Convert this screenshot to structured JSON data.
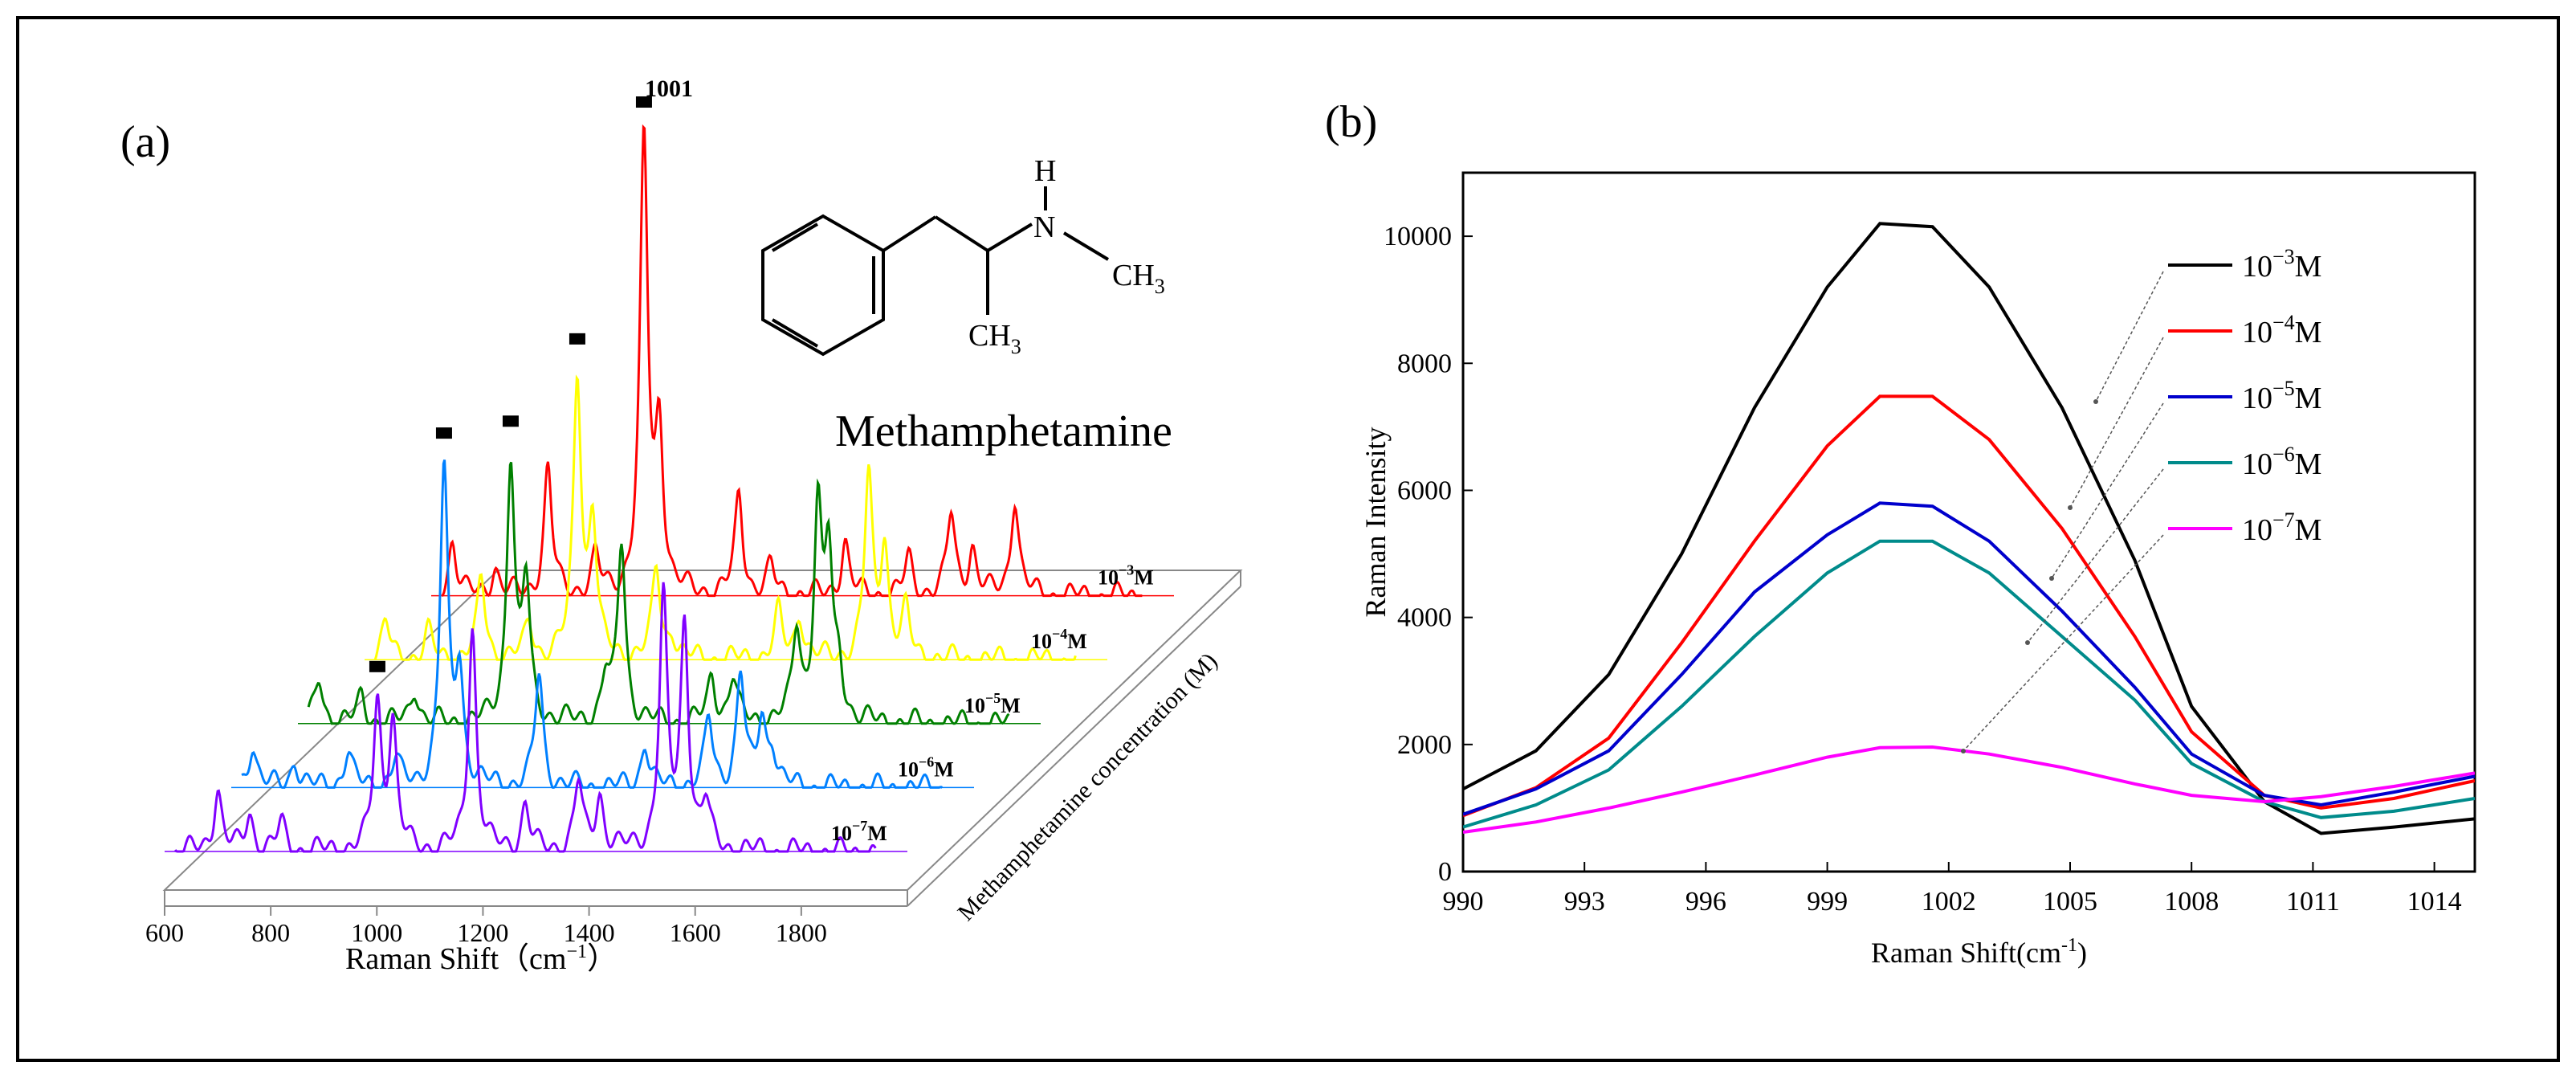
{
  "figure": {
    "panel_a_label": "(a)",
    "panel_b_label": "(b)",
    "molecule": {
      "name": "Methamphetamine",
      "atom_h": "H",
      "atom_n": "N",
      "group_ch3_right": "CH3",
      "group_ch3_bottom": "CH3",
      "ch_text": "CH",
      "subscript_3": "3"
    }
  },
  "chart_data": [
    {
      "type": "line",
      "panel": "(a)",
      "style": "waterfall-3d",
      "title": "",
      "xlabel": "Raman Shift（cm",
      "xlabel_sup": "−1",
      "xlabel_close": "）",
      "zlabel": "Methamphetamine concentration (M)",
      "xlim": [
        600,
        2000
      ],
      "xticks": [
        "600",
        "800",
        "1000",
        "1200",
        "1400",
        "1600",
        "1800"
      ],
      "peak_annotation": "1001",
      "series": [
        {
          "name": "10−3M",
          "base": "10",
          "exp": "−3",
          "unit": "M",
          "color": "#ff0000",
          "peaks": [
            [
              640,
              0.12
            ],
            [
              720,
              0.06
            ],
            [
              820,
              0.28
            ],
            [
              910,
              0.08
            ],
            [
              1001,
              1.0
            ],
            [
              1030,
              0.35
            ],
            [
              1180,
              0.22
            ],
            [
              1240,
              0.06
            ],
            [
              1380,
              0.12
            ],
            [
              1500,
              0.08
            ],
            [
              1580,
              0.18
            ],
            [
              1620,
              0.1
            ],
            [
              1700,
              0.22
            ]
          ]
        },
        {
          "name": "10−4M",
          "base": "10",
          "exp": "−4",
          "unit": "M",
          "color": "#ffff00",
          "peaks": [
            [
              640,
              0.08
            ],
            [
              720,
              0.06
            ],
            [
              820,
              0.18
            ],
            [
              910,
              0.08
            ],
            [
              1001,
              0.62
            ],
            [
              1030,
              0.3
            ],
            [
              1150,
              0.2
            ],
            [
              1180,
              0.05
            ],
            [
              1380,
              0.1
            ],
            [
              1420,
              0.1
            ],
            [
              1550,
              0.4
            ],
            [
              1580,
              0.25
            ],
            [
              1620,
              0.1
            ]
          ]
        },
        {
          "name": "10−5M",
          "base": "10",
          "exp": "−5",
          "unit": "M",
          "color": "#008000",
          "peaks": [
            [
              640,
              0.1
            ],
            [
              720,
              0.06
            ],
            [
              820,
              0.08
            ],
            [
              1001,
              0.58
            ],
            [
              1030,
              0.3
            ],
            [
              1180,
              0.1
            ],
            [
              1210,
              0.4
            ],
            [
              1380,
              0.1
            ],
            [
              1420,
              0.1
            ],
            [
              1540,
              0.2
            ],
            [
              1580,
              0.45
            ],
            [
              1600,
              0.35
            ],
            [
              1620,
              0.1
            ]
          ]
        },
        {
          "name": "10−6M",
          "base": "10",
          "exp": "−6",
          "unit": "M",
          "color": "#0080ff",
          "peaks": [
            [
              640,
              0.1
            ],
            [
              720,
              0.06
            ],
            [
              820,
              0.08
            ],
            [
              910,
              0.06
            ],
            [
              1001,
              0.7
            ],
            [
              1030,
              0.25
            ],
            [
              1180,
              0.25
            ],
            [
              1380,
              0.1
            ],
            [
              1500,
              0.15
            ],
            [
              1560,
              0.25
            ],
            [
              1600,
              0.15
            ],
            [
              1620,
              0.08
            ]
          ]
        },
        {
          "name": "10−7M",
          "base": "10",
          "exp": "−7",
          "unit": "M",
          "color": "#8000ff",
          "peaks": [
            [
              700,
              0.14
            ],
            [
              760,
              0.08
            ],
            [
              820,
              0.06
            ],
            [
              1001,
              0.32
            ],
            [
              1030,
              0.28
            ],
            [
              1180,
              0.5
            ],
            [
              1280,
              0.1
            ],
            [
              1380,
              0.15
            ],
            [
              1420,
              0.12
            ],
            [
              1540,
              0.55
            ],
            [
              1580,
              0.5
            ],
            [
              1620,
              0.1
            ]
          ]
        }
      ],
      "markers": [
        {
          "series": 0,
          "x": 1001
        },
        {
          "series": 1,
          "x": 1001
        },
        {
          "series": 2,
          "x": 1001
        },
        {
          "series": 3,
          "x": 1001
        },
        {
          "series": 4,
          "x": 1001
        }
      ]
    },
    {
      "type": "line",
      "panel": "(b)",
      "title": "",
      "xlabel": "Raman Shift(cm",
      "xlabel_sup": "-1",
      "xlabel_close": ")",
      "ylabel": "Raman Intensity",
      "xlim": [
        990,
        1015
      ],
      "ylim": [
        0,
        11000
      ],
      "xticks": [
        990,
        993,
        996,
        999,
        1002,
        1005,
        1008,
        1011,
        1014
      ],
      "yticks": [
        0,
        2000,
        4000,
        6000,
        8000,
        10000
      ],
      "x": [
        990,
        991.8,
        993.6,
        995.4,
        997.2,
        999.0,
        1000.3,
        1001.6,
        1003.0,
        1004.8,
        1006.6,
        1008.0,
        1009.8,
        1011.2,
        1013.0,
        1015
      ],
      "series": [
        {
          "name": "10−3M",
          "base": "10",
          "exp": "−3",
          "unit": "M",
          "color": "#000000",
          "values": [
            1300,
            1900,
            3100,
            5000,
            7300,
            9200,
            10200,
            10150,
            9200,
            7300,
            4900,
            2600,
            1100,
            600,
            700,
            830
          ]
        },
        {
          "name": "10−4M",
          "base": "10",
          "exp": "−4",
          "unit": "M",
          "color": "#ff0000",
          "values": [
            880,
            1320,
            2100,
            3600,
            5200,
            6700,
            7480,
            7480,
            6800,
            5400,
            3700,
            2200,
            1200,
            1000,
            1150,
            1430
          ]
        },
        {
          "name": "10−5M",
          "base": "10",
          "exp": "−5",
          "unit": "M",
          "color": "#0000cc",
          "values": [
            900,
            1300,
            1900,
            3100,
            4400,
            5300,
            5800,
            5750,
            5200,
            4100,
            2900,
            1850,
            1200,
            1050,
            1250,
            1500
          ]
        },
        {
          "name": "10−6M",
          "base": "10",
          "exp": "−6",
          "unit": "M",
          "color": "#008b8b",
          "values": [
            700,
            1050,
            1600,
            2600,
            3700,
            4700,
            5200,
            5200,
            4700,
            3700,
            2700,
            1700,
            1100,
            850,
            950,
            1150
          ]
        },
        {
          "name": "10−7M",
          "base": "10",
          "exp": "−7",
          "unit": "M",
          "color": "#ff00ff",
          "values": [
            620,
            780,
            1000,
            1250,
            1520,
            1800,
            1950,
            1960,
            1850,
            1640,
            1380,
            1200,
            1100,
            1180,
            1340,
            1550
          ]
        }
      ]
    }
  ]
}
